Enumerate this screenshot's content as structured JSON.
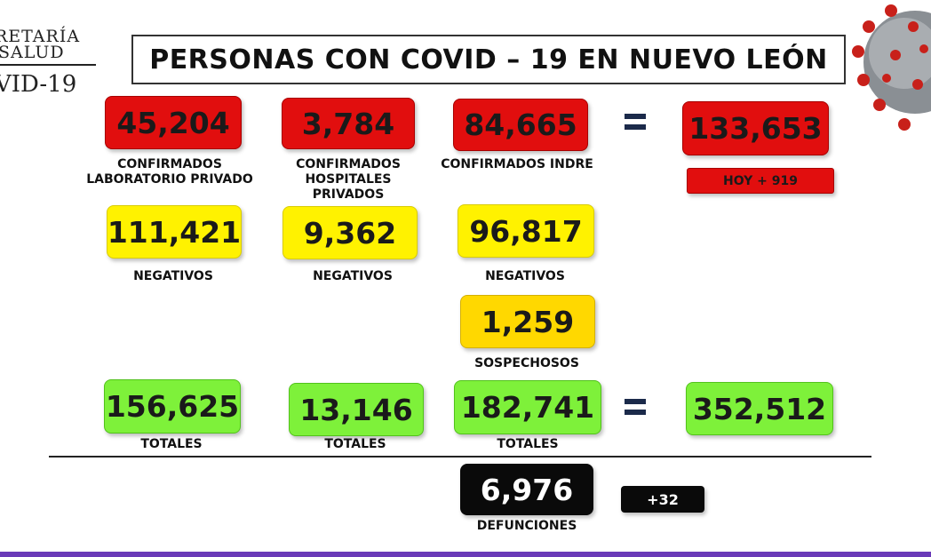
{
  "logo": {
    "line1": "RETARÍA",
    "line2": "SALUD",
    "line3": "VID-19"
  },
  "title": "PERSONAS CON COVID – 19 EN NUEVO LEÓN",
  "confirmados": {
    "lab_privado": {
      "value": "45,204",
      "label_line1": "CONFIRMADOS",
      "label_line2": "LABORATORIO PRIVADO"
    },
    "hosp_privados": {
      "value": "3,784",
      "label_line1": "CONFIRMADOS",
      "label_line2": "HOSPITALES PRIVADOS"
    },
    "indre": {
      "value": "84,665",
      "label_line1": "CONFIRMADOS INDRE"
    },
    "total": {
      "value": "133,653"
    },
    "hoy": "HOY + 919"
  },
  "negativos": {
    "lab_privado": {
      "value": "111,421",
      "label": "NEGATIVOS"
    },
    "hosp_privados": {
      "value": "9,362",
      "label": "NEGATIVOS"
    },
    "indre": {
      "value": "96,817",
      "label": "NEGATIVOS"
    }
  },
  "sospechosos": {
    "value": "1,259",
    "label": "SOSPECHOSOS"
  },
  "totales": {
    "lab_privado": {
      "value": "156,625",
      "label": "TOTALES"
    },
    "hosp_privados": {
      "value": "13,146",
      "label": "TOTALES"
    },
    "indre": {
      "value": "182,741",
      "label": "TOTALES"
    },
    "grand_total": {
      "value": "352,512"
    }
  },
  "defunciones": {
    "value": "6,976",
    "label": "DEFUNCIONES",
    "delta": "+32"
  },
  "colors": {
    "red": "#e10e0e",
    "yellow": "#fff200",
    "green": "#7ef13a",
    "black": "#0a0a0a"
  }
}
